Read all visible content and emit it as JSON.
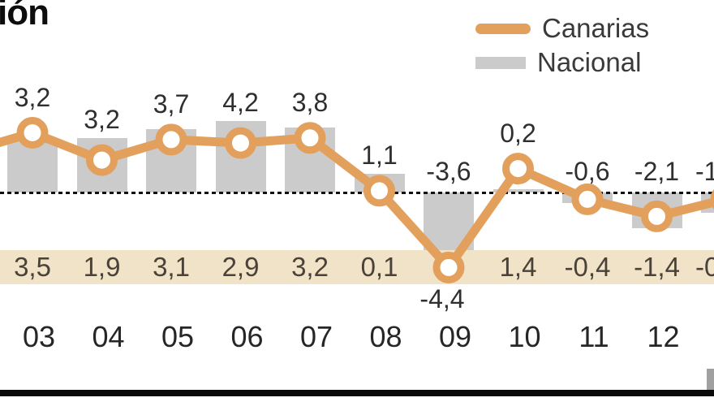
{
  "title_partial": "ión",
  "legend": {
    "canarias_label": "Canarias",
    "nacional_label": "Nacional"
  },
  "colors": {
    "canarias_line": "#E2A05C",
    "nacional_bar": "#CBCBCB",
    "band_background": "#F0E3C8",
    "band_text": "#4A4238",
    "value_text": "#2F2F2F",
    "axis_text": "#262626",
    "zero_line": "#111111",
    "marker_fill": "#FFFFFF"
  },
  "chart_data": {
    "type": "bar+line combo",
    "categories": [
      "03",
      "04",
      "05",
      "06",
      "07",
      "08",
      "09",
      "10",
      "11",
      "12"
    ],
    "series": [
      {
        "name": "Canarias",
        "type": "line",
        "values": [
          3.5,
          1.9,
          3.1,
          2.9,
          3.2,
          0.1,
          -4.4,
          1.4,
          -0.4,
          -1.4
        ],
        "labels": [
          "3,5",
          "1,9",
          "3,1",
          "2,9",
          "3,2",
          "0,1",
          "-4,4",
          "1,4",
          "-0,4",
          "-1,4"
        ]
      },
      {
        "name": "Nacional",
        "type": "bar",
        "values": [
          3.2,
          3.2,
          3.7,
          4.2,
          3.8,
          1.1,
          -3.6,
          0.2,
          -0.6,
          -2.1
        ],
        "labels": [
          "3,2",
          "3,2",
          "3,7",
          "4,2",
          "3,8",
          "1,1",
          "-3,6",
          "0,2",
          "-0,6",
          "-2,1"
        ]
      }
    ],
    "zero_baseline": "dashed",
    "legend_position": "top-right",
    "partial_right_column": {
      "nacional_label_visible": "-1",
      "canarias_label_visible": "-0",
      "nacional_value_est": -1.2,
      "canarias_value_est": -0.4
    },
    "partial_left_line_entry_value_est": 2.3
  }
}
